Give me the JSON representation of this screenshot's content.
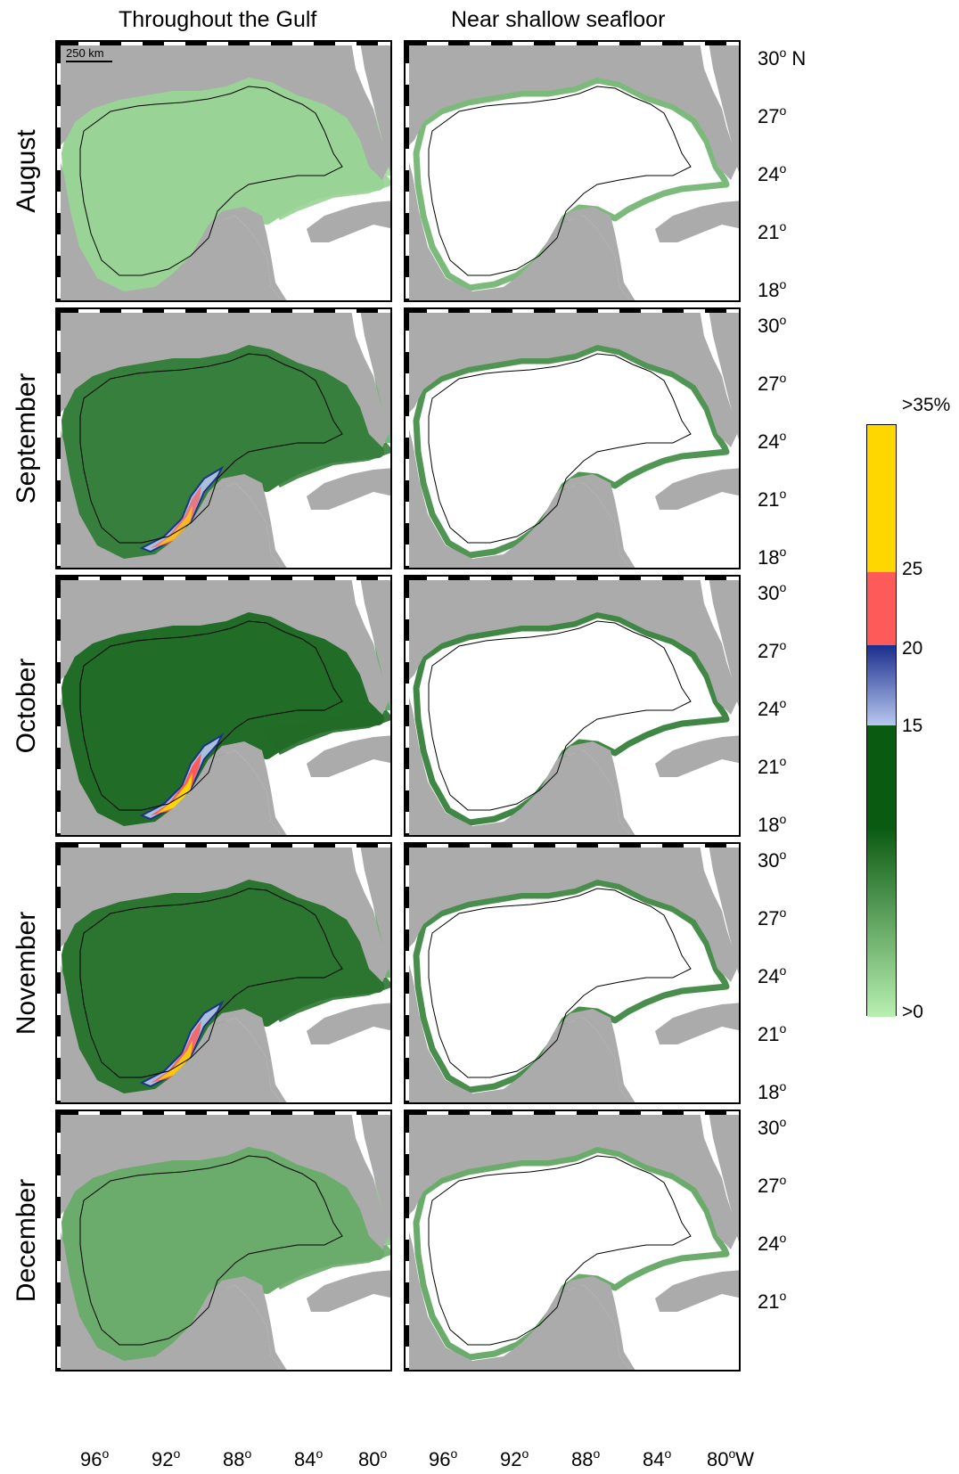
{
  "columns": [
    "Throughout the Gulf",
    "Near shallow seafloor"
  ],
  "rows": [
    {
      "month": "August",
      "lat_ticks": [
        "30",
        "27",
        "24",
        "21",
        "18"
      ],
      "top_lat_suffix": "N",
      "gulf_level": 0.18,
      "shelf_level": 0.35,
      "hotspot_level": 0.0
    },
    {
      "month": "September",
      "lat_ticks": [
        "30",
        "27",
        "24",
        "21",
        "18"
      ],
      "top_lat_suffix": "",
      "gulf_level": 0.75,
      "shelf_level": 0.6,
      "hotspot_level": 0.7
    },
    {
      "month": "October",
      "lat_ticks": [
        "30",
        "27",
        "24",
        "21",
        "18"
      ],
      "top_lat_suffix": "",
      "gulf_level": 0.88,
      "shelf_level": 0.7,
      "hotspot_level": 1.0
    },
    {
      "month": "November",
      "lat_ticks": [
        "30",
        "27",
        "24",
        "21",
        "18"
      ],
      "top_lat_suffix": "",
      "gulf_level": 0.82,
      "shelf_level": 0.65,
      "hotspot_level": 0.85
    },
    {
      "month": "December",
      "lat_ticks": [
        "30",
        "27",
        "24",
        "21"
      ],
      "top_lat_suffix": "",
      "gulf_level": 0.45,
      "shelf_level": 0.45,
      "hotspot_level": 0.0
    }
  ],
  "lon_ticks": [
    "96",
    "92",
    "88",
    "84",
    "80"
  ],
  "lon_suffix": "W",
  "scale_bar": "250 km",
  "colorbar": {
    "labels": [
      ">35%",
      "25",
      "20",
      "15",
      ">0"
    ],
    "colors": {
      "yellow": "#ffd700",
      "red": "#ff5a5a",
      "blue_dark": "#1a2e8c",
      "blue_light": "#b8c8f0",
      "green_dark": "#0b5a12",
      "green_light": "#b8f0b0"
    }
  },
  "colors": {
    "land": "#ababab",
    "coast_line": "#000000",
    "gulf_green_light": "#b9eeb3",
    "gulf_green_dark": "#0c5a14"
  }
}
